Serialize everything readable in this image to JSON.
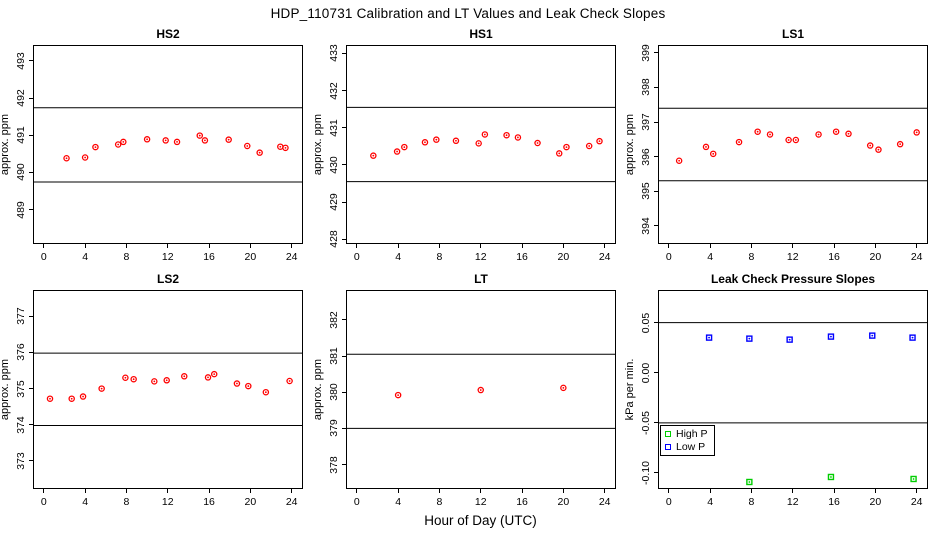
{
  "title": "HDP_110731  Calibration and LT Values and Leak Check Slopes",
  "xlabel": "Hour of Day (UTC)",
  "colors": {
    "red": "#FF0000",
    "green": "#00CD00",
    "blue": "#0000FF",
    "axis": "#000000"
  },
  "chart_data": [
    {
      "type": "scatter",
      "title": "HS2",
      "ylabel": "approx. ppm",
      "xlim": [
        -0.95,
        25.0
      ],
      "ylim": [
        488.1,
        493.4
      ],
      "xticks": [
        0,
        4,
        8,
        12,
        16,
        20,
        24
      ],
      "xtick_labels": [
        "0",
        "4",
        "8",
        "12",
        "16",
        "20",
        "24"
      ],
      "yticks": [
        489,
        490,
        491,
        492,
        493
      ],
      "ytick_labels": [
        "489",
        "490",
        "491",
        "492",
        "493"
      ],
      "ref_lines": [
        491.74,
        489.74
      ],
      "grid": false,
      "series": [
        {
          "name": "HS2 calibration",
          "color": "red",
          "marker": "circle-dot",
          "x": [
            2.2,
            4.0,
            5.0,
            7.2,
            7.7,
            10.0,
            11.8,
            12.9,
            15.1,
            15.6,
            17.9,
            19.7,
            20.9,
            22.9,
            23.4
          ],
          "y": [
            490.38,
            490.4,
            490.68,
            490.75,
            490.82,
            490.89,
            490.86,
            490.82,
            490.99,
            490.86,
            490.88,
            490.71,
            490.53,
            490.69,
            490.66
          ]
        }
      ]
    },
    {
      "type": "scatter",
      "title": "HS1",
      "ylabel": "approx. ppm",
      "xlim": [
        -0.95,
        25.0
      ],
      "ylim": [
        427.9,
        433.2
      ],
      "xticks": [
        0,
        4,
        8,
        12,
        16,
        20,
        24
      ],
      "xtick_labels": [
        "0",
        "4",
        "8",
        "12",
        "16",
        "20",
        "24"
      ],
      "yticks": [
        428,
        429,
        430,
        431,
        432,
        433
      ],
      "ytick_labels": [
        "428",
        "429",
        "430",
        "431",
        "432",
        "433"
      ],
      "ref_lines": [
        431.55,
        429.55
      ],
      "grid": false,
      "series": [
        {
          "name": "HS1 calibration",
          "color": "red",
          "marker": "circle-dot",
          "x": [
            1.6,
            3.9,
            4.6,
            6.6,
            7.7,
            9.6,
            11.8,
            12.4,
            14.5,
            15.6,
            17.5,
            19.6,
            20.3,
            22.5,
            23.5
          ],
          "y": [
            430.25,
            430.36,
            430.48,
            430.61,
            430.68,
            430.65,
            430.58,
            430.82,
            430.8,
            430.74,
            430.59,
            430.31,
            430.48,
            430.51,
            430.64
          ]
        }
      ]
    },
    {
      "type": "scatter",
      "title": "LS1",
      "ylabel": "approx. ppm",
      "xlim": [
        -0.95,
        25.0
      ],
      "ylim": [
        393.5,
        399.2
      ],
      "xticks": [
        0,
        4,
        8,
        12,
        16,
        20,
        24
      ],
      "xtick_labels": [
        "0",
        "4",
        "8",
        "12",
        "16",
        "20",
        "24"
      ],
      "yticks": [
        394,
        395,
        396,
        397,
        398,
        399
      ],
      "ytick_labels": [
        "394",
        "395",
        "396",
        "397",
        "398",
        "399"
      ],
      "ref_lines": [
        397.4,
        395.3
      ],
      "grid": false,
      "series": [
        {
          "name": "LS1 calibration",
          "color": "red",
          "marker": "circle-dot",
          "x": [
            1.0,
            3.6,
            4.3,
            6.8,
            8.6,
            9.8,
            11.6,
            12.3,
            14.5,
            16.2,
            17.4,
            19.5,
            20.3,
            22.4,
            24.0
          ],
          "y": [
            395.88,
            396.28,
            396.08,
            396.42,
            396.72,
            396.64,
            396.48,
            396.48,
            396.64,
            396.72,
            396.66,
            396.32,
            396.2,
            396.36,
            396.7
          ]
        }
      ]
    },
    {
      "type": "scatter",
      "title": "LS2",
      "ylabel": "approx. ppm",
      "xlim": [
        -0.95,
        25.0
      ],
      "ylim": [
        372.25,
        377.7
      ],
      "xticks": [
        0,
        4,
        8,
        12,
        16,
        20,
        24
      ],
      "xtick_labels": [
        "0",
        "4",
        "8",
        "12",
        "16",
        "20",
        "24"
      ],
      "yticks": [
        373,
        374,
        375,
        376,
        377
      ],
      "ytick_labels": [
        "373",
        "374",
        "375",
        "376",
        "377"
      ],
      "ref_lines": [
        375.98,
        373.98
      ],
      "grid": false,
      "series": [
        {
          "name": "LS2 calibration",
          "color": "red",
          "marker": "circle-dot",
          "x": [
            0.6,
            2.7,
            3.8,
            5.6,
            7.9,
            8.7,
            10.7,
            11.9,
            13.6,
            15.9,
            16.5,
            18.7,
            19.8,
            21.5,
            23.8
          ],
          "y": [
            374.72,
            374.72,
            374.78,
            375.0,
            375.3,
            375.26,
            375.2,
            375.23,
            375.34,
            375.31,
            375.4,
            375.14,
            375.07,
            374.9,
            375.21
          ]
        }
      ]
    },
    {
      "type": "scatter",
      "title": "LT",
      "ylabel": "approx. ppm",
      "xlim": [
        -0.95,
        25.0
      ],
      "ylim": [
        377.35,
        382.8
      ],
      "xticks": [
        0,
        4,
        8,
        12,
        16,
        20,
        24
      ],
      "xtick_labels": [
        "0",
        "4",
        "8",
        "12",
        "16",
        "20",
        "24"
      ],
      "yticks": [
        378,
        379,
        380,
        381,
        382
      ],
      "ytick_labels": [
        "378",
        "379",
        "380",
        "381",
        "382"
      ],
      "ref_lines": [
        381.05,
        379.0
      ],
      "grid": false,
      "series": [
        {
          "name": "LT values",
          "color": "red",
          "marker": "circle-dot",
          "x": [
            4.0,
            12.0,
            20.0
          ],
          "y": [
            379.92,
            380.06,
            380.12
          ]
        }
      ]
    },
    {
      "type": "scatter",
      "title": "Leak Check Pressure Slopes",
      "ylabel": "kPa per min.",
      "xlim": [
        -0.95,
        25.0
      ],
      "ylim": [
        -0.115,
        0.0815
      ],
      "xticks": [
        0,
        4,
        8,
        12,
        16,
        20,
        24
      ],
      "xtick_labels": [
        "0",
        "4",
        "8",
        "12",
        "16",
        "20",
        "24"
      ],
      "yticks": [
        0.05,
        0.0,
        -0.05,
        -0.1
      ],
      "ytick_labels": [
        "0.05",
        "0.00",
        "-0.05",
        "-0.10"
      ],
      "ref_lines": [
        0.05,
        -0.05
      ],
      "grid": false,
      "legend": {
        "position": "left-middle",
        "items": [
          {
            "label": "High P",
            "color": "green"
          },
          {
            "label": "Low P",
            "color": "blue"
          }
        ]
      },
      "series": [
        {
          "name": "High P",
          "color": "green",
          "marker": "square-dot",
          "x": [
            7.8,
            15.7,
            23.7
          ],
          "y": [
            -0.109,
            -0.104,
            -0.106
          ]
        },
        {
          "name": "Low P",
          "color": "blue",
          "marker": "square-dot",
          "x": [
            3.9,
            7.8,
            11.7,
            15.7,
            19.7,
            23.6
          ],
          "y": [
            0.035,
            0.034,
            0.033,
            0.036,
            0.037,
            0.035
          ]
        }
      ]
    }
  ]
}
